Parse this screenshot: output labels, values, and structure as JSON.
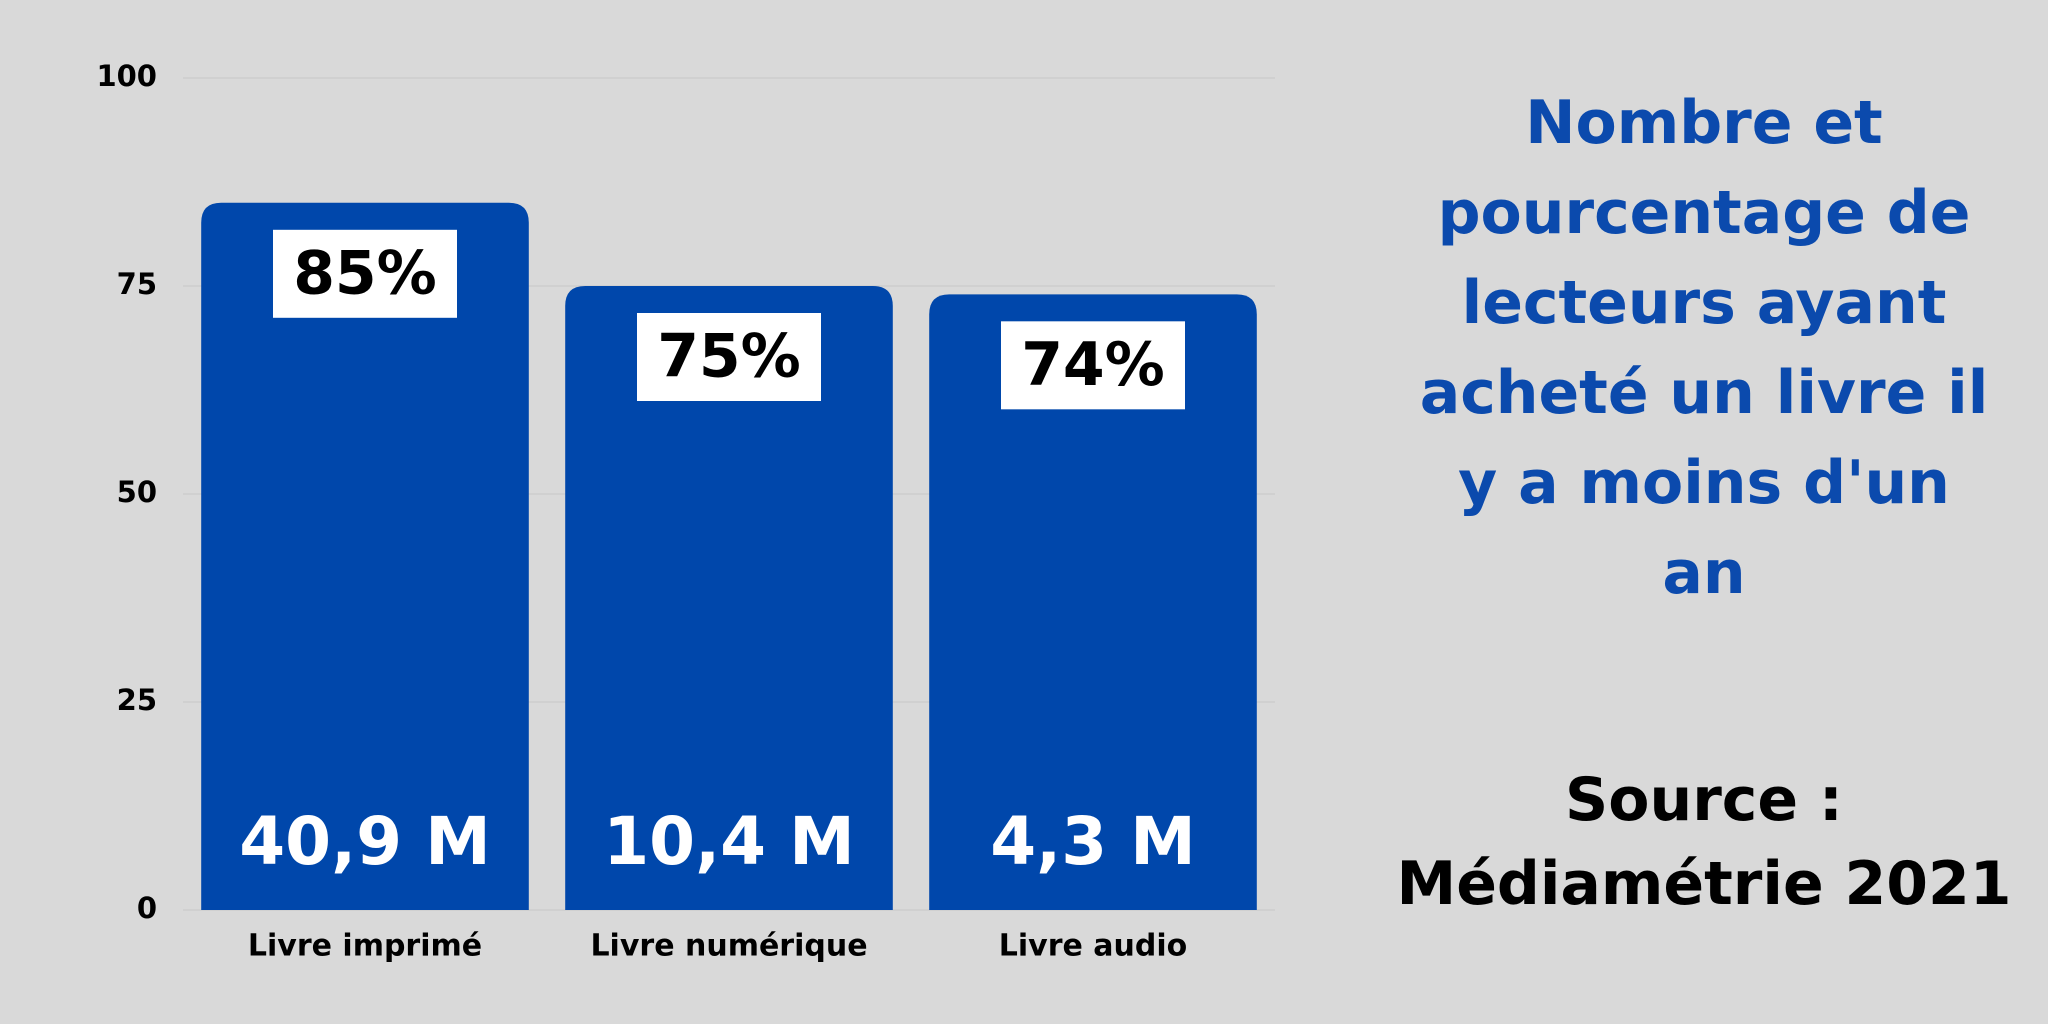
{
  "chart_data": {
    "type": "bar",
    "title": "Nombre et pourcentage de lecteurs ayant acheté un livre il y a moins d'un an",
    "source": [
      "Source :",
      "Médiamétrie 2021"
    ],
    "categories": [
      "Livre imprimé",
      "Livre numérique",
      "Livre audio"
    ],
    "values": [
      85,
      75,
      74
    ],
    "value_labels": [
      "85%",
      "75%",
      "74%"
    ],
    "count_labels": [
      "40,9 M",
      "10,4 M",
      "4,3 M"
    ],
    "color": "#0047ab",
    "ylim": [
      0,
      100
    ],
    "yticks": [
      0,
      25,
      50,
      75,
      100
    ],
    "grid": true
  }
}
